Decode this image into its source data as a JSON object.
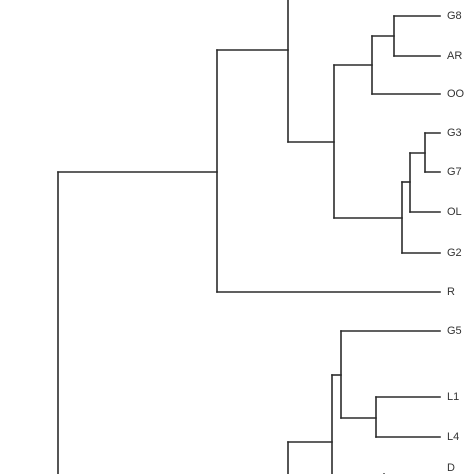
{
  "dendrogram": {
    "leaves": [
      "G8",
      "AR",
      "OO",
      "G3",
      "G7",
      "OL",
      "G2",
      "R",
      "G5",
      "L1",
      "L4",
      "D"
    ]
  }
}
